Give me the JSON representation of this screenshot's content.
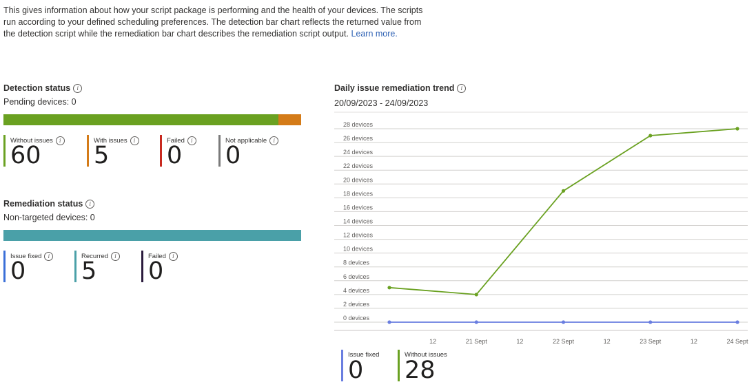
{
  "intro": {
    "text": "This gives information about how your script package is performing and the health of your devices. The scripts run according to your defined scheduling preferences. The detection bar chart reflects the returned value from the detection script while the remediation bar chart describes the remediation script output.",
    "link": "Learn more."
  },
  "detection": {
    "title": "Detection status",
    "pending": "Pending devices: 0",
    "bar": [
      {
        "name": "Without issues",
        "value": 60,
        "color": "#6aa121"
      },
      {
        "name": "With issues",
        "value": 5,
        "color": "#d47b18"
      }
    ],
    "metrics": [
      {
        "label": "Without issues",
        "value": "60",
        "color": "#6aa121"
      },
      {
        "label": "With issues",
        "value": "5",
        "color": "#d47b18"
      },
      {
        "label": "Failed",
        "value": "0",
        "color": "#c8291f"
      },
      {
        "label": "Not applicable",
        "value": "0",
        "color": "#7a7a7a"
      }
    ]
  },
  "remediation": {
    "title": "Remediation status",
    "nontargeted": "Non-targeted devices: 0",
    "bar": [
      {
        "name": "Recurred",
        "value": 5,
        "color": "#4aa0a8"
      }
    ],
    "metrics": [
      {
        "label": "Issue fixed",
        "value": "0",
        "color": "#3a6fd8"
      },
      {
        "label": "Recurred",
        "value": "5",
        "color": "#4aa0a8"
      },
      {
        "label": "Failed",
        "value": "0",
        "color": "#2b1b3d"
      }
    ]
  },
  "trend": {
    "title": "Daily issue remediation trend",
    "range": "20/09/2023 - 24/09/2023",
    "legend": [
      {
        "label": "Issue fixed",
        "value": "0",
        "color": "#6a7ee0"
      },
      {
        "label": "Without issues",
        "value": "28",
        "color": "#6aa121"
      }
    ]
  },
  "chart_data": {
    "type": "line",
    "x": [
      "20 Sept",
      "21 Sept",
      "22 Sept",
      "23 Sept",
      "24 Sept"
    ],
    "x_tick_labels": [
      "12",
      "21 Sept",
      "12",
      "22 Sept",
      "12",
      "23 Sept",
      "12",
      "24 Sept"
    ],
    "y_tick_labels": [
      "0 devices",
      "2 devices",
      "4 devices",
      "6 devices",
      "8 devices",
      "10 devices",
      "12 devices",
      "14 devices",
      "16 devices",
      "18 devices",
      "20 devices",
      "22 devices",
      "24 devices",
      "26 devices",
      "28 devices"
    ],
    "ylim": [
      0,
      28
    ],
    "grid": true,
    "series": [
      {
        "name": "Without issues",
        "color": "#6aa121",
        "values": [
          5,
          4,
          19,
          27,
          28
        ]
      },
      {
        "name": "Issue fixed",
        "color": "#6a7ee0",
        "values": [
          0,
          0,
          0,
          0,
          0
        ]
      }
    ]
  }
}
